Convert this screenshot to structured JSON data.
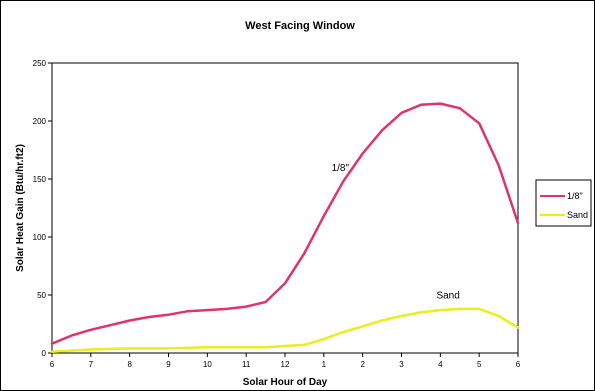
{
  "chart_data": {
    "type": "line",
    "title": "West Facing Window",
    "xlabel": "Solar Hour of Day",
    "ylabel": "Solar Heat Gain (Btu/hr.ft2)",
    "x_ticks": [
      "6",
      "7",
      "8",
      "9",
      "10",
      "11",
      "12",
      "1",
      "2",
      "3",
      "4",
      "5",
      "6"
    ],
    "y_ticks": [
      "0",
      "50",
      "100",
      "150",
      "200",
      "250"
    ],
    "ylim": [
      0,
      250
    ],
    "grid": false,
    "legend_position": "right",
    "series": [
      {
        "name": "1/8\"",
        "color": "#e0336e",
        "x": [
          0,
          0.5,
          1,
          1.5,
          2,
          2.5,
          3,
          3.5,
          4,
          4.5,
          5,
          5.5,
          6,
          6.5,
          7,
          7.5,
          8,
          8.5,
          9,
          9.5,
          10,
          10.5,
          11,
          11.5,
          12
        ],
        "values": [
          8,
          15,
          20,
          24,
          28,
          31,
          33,
          36,
          37,
          38,
          40,
          44,
          60,
          86,
          118,
          148,
          172,
          192,
          207,
          214,
          215,
          211,
          198,
          162,
          112
        ]
      },
      {
        "name": "Sand",
        "color": "#ecec1e",
        "x": [
          0,
          1,
          2,
          3,
          4,
          5,
          5.5,
          6,
          6.5,
          7,
          7.5,
          8,
          8.5,
          9,
          9.5,
          10,
          10.5,
          11,
          11.5,
          12
        ],
        "values": [
          1,
          3,
          4,
          4,
          5,
          5,
          5,
          6,
          7,
          12,
          18,
          23,
          28,
          32,
          35,
          37,
          38,
          38,
          32,
          22
        ]
      }
    ],
    "annotations": [
      {
        "text": "1/8\"",
        "x": 7.2,
        "y": 157
      },
      {
        "text": "Sand",
        "x": 9.9,
        "y": 47
      }
    ]
  }
}
